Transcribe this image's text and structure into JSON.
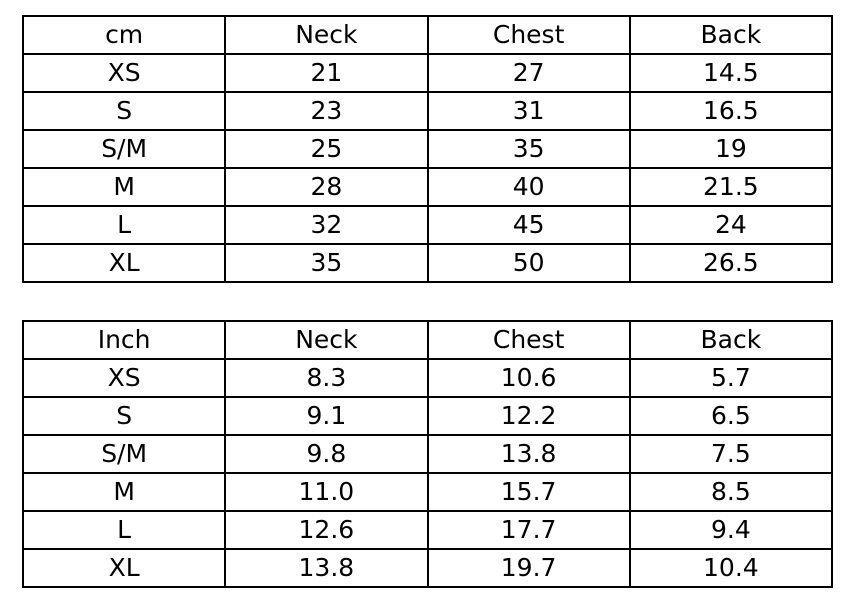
{
  "colors": {
    "background": "#ffffff",
    "text": "#000000",
    "border": "#000000"
  },
  "chart_data": [
    {
      "type": "table",
      "unit": "cm",
      "columns": [
        "cm",
        "Neck",
        "Chest",
        "Back"
      ],
      "rows": [
        [
          "XS",
          "21",
          "27",
          "14.5"
        ],
        [
          "S",
          "23",
          "31",
          "16.5"
        ],
        [
          "S/M",
          "25",
          "35",
          "19"
        ],
        [
          "M",
          "28",
          "40",
          "21.5"
        ],
        [
          "L",
          "32",
          "45",
          "24"
        ],
        [
          "XL",
          "35",
          "50",
          "26.5"
        ]
      ]
    },
    {
      "type": "table",
      "unit": "Inch",
      "columns": [
        "Inch",
        "Neck",
        "Chest",
        "Back"
      ],
      "rows": [
        [
          "XS",
          "8.3",
          "10.6",
          "5.7"
        ],
        [
          "S",
          "9.1",
          "12.2",
          "6.5"
        ],
        [
          "S/M",
          "9.8",
          "13.8",
          "7.5"
        ],
        [
          "M",
          "11.0",
          "15.7",
          "8.5"
        ],
        [
          "L",
          "12.6",
          "17.7",
          "9.4"
        ],
        [
          "XL",
          "13.8",
          "19.7",
          "10.4"
        ]
      ]
    }
  ]
}
